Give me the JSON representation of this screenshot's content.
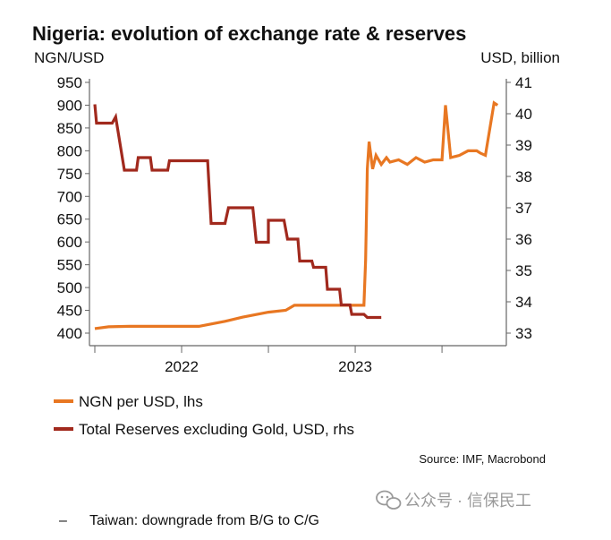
{
  "chart_data": {
    "type": "line",
    "title": "Nigeria: evolution of exchange rate & reserves",
    "left_axis_unit": "NGN/USD",
    "right_axis_unit": "USD, billion",
    "left_ylim": [
      400,
      950
    ],
    "left_ticks": [
      "950",
      "900",
      "850",
      "800",
      "750",
      "700",
      "650",
      "600",
      "550",
      "500",
      "450",
      "400"
    ],
    "right_ylim": [
      33,
      41
    ],
    "right_ticks": [
      "41",
      "40",
      "39",
      "38",
      "37",
      "36",
      "35",
      "34",
      "33"
    ],
    "x_ticks": [
      "2022",
      "2023"
    ],
    "grid": false,
    "series": [
      {
        "name": "NGN per USD, lhs",
        "axis": "left",
        "color": "#e87722",
        "x": [
          2021.5,
          2021.58,
          2021.7,
          2021.9,
          2022.1,
          2022.25,
          2022.35,
          2022.5,
          2022.6,
          2022.65,
          2022.75,
          2022.9,
          2023.0,
          2023.05,
          2023.06,
          2023.07,
          2023.08,
          2023.1,
          2023.12,
          2023.15,
          2023.18,
          2023.2,
          2023.25,
          2023.3,
          2023.35,
          2023.4,
          2023.45,
          2023.5,
          2023.52,
          2023.55,
          2023.6,
          2023.65,
          2023.7,
          2023.72,
          2023.75,
          2023.8,
          2023.82
        ],
        "y": [
          410,
          414,
          415,
          415,
          415,
          426,
          435,
          446,
          450,
          461,
          461,
          461,
          461,
          461,
          560,
          760,
          820,
          760,
          790,
          770,
          785,
          775,
          780,
          770,
          785,
          775,
          780,
          780,
          900,
          785,
          790,
          800,
          800,
          795,
          790,
          905,
          900
        ]
      },
      {
        "name": "Total Reserves excluding Gold, USD, rhs",
        "axis": "right",
        "color": "#a1291d",
        "x": [
          2021.5,
          2021.51,
          2021.6,
          2021.62,
          2021.67,
          2021.74,
          2021.75,
          2021.82,
          2021.83,
          2021.92,
          2021.93,
          2022.0,
          2022.08,
          2022.15,
          2022.17,
          2022.25,
          2022.27,
          2022.41,
          2022.43,
          2022.5,
          2022.5,
          2022.59,
          2022.61,
          2022.67,
          2022.68,
          2022.75,
          2022.76,
          2022.83,
          2022.84,
          2022.91,
          2022.92,
          2022.97,
          2022.98,
          2023.05,
          2023.07,
          2023.15
        ],
        "y": [
          40.3,
          39.7,
          39.7,
          39.9,
          38.2,
          38.2,
          38.6,
          38.6,
          38.2,
          38.2,
          38.5,
          38.5,
          38.5,
          38.5,
          36.5,
          36.5,
          37.0,
          37.0,
          35.9,
          35.9,
          36.6,
          36.6,
          36.0,
          36.0,
          35.3,
          35.3,
          35.1,
          35.1,
          34.4,
          34.4,
          33.9,
          33.9,
          33.6,
          33.6,
          33.5,
          33.5
        ]
      }
    ],
    "source": "Source: IMF, Macrobond"
  },
  "footer": {
    "watermark": "公众号 · 信保民工",
    "next_heading": "Taiwan: downgrade from B/G to C/G",
    "bullet": "–"
  }
}
